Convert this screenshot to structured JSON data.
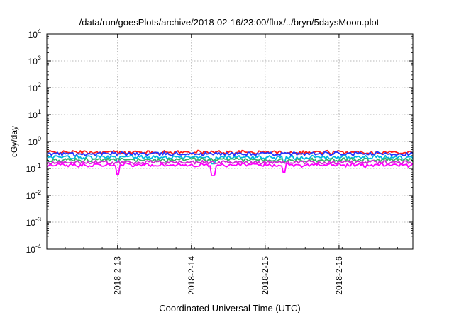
{
  "chart_data": {
    "type": "line",
    "title": "/data/run/goesPlots/archive/2018-02-16/23:00/flux/../bryn/5daysMoon.plot",
    "xlabel": "Coordinated Universal Time (UTC)",
    "ylabel": "cGy/day",
    "yscale": "log",
    "ylim": [
      0.0001,
      10000
    ],
    "yticks": [
      {
        "base": "10",
        "exp": "-4"
      },
      {
        "base": "10",
        "exp": "-3"
      },
      {
        "base": "10",
        "exp": "-2"
      },
      {
        "base": "10",
        "exp": "-1"
      },
      {
        "base": "10",
        "exp": "0"
      },
      {
        "base": "10",
        "exp": "1"
      },
      {
        "base": "10",
        "exp": "2"
      },
      {
        "base": "10",
        "exp": "3"
      },
      {
        "base": "10",
        "exp": "4"
      }
    ],
    "xlim": [
      "2018-02-12T01:00",
      "2018-02-17T00:00"
    ],
    "xticks": [
      "2018-2-13",
      "2018-2-14",
      "2018-2-15",
      "2018-2-16"
    ],
    "grid": true,
    "series": [
      {
        "color": "#ff1a1a",
        "base": 0.4,
        "dips": []
      },
      {
        "color": "#2233ff",
        "base": 0.35,
        "dips": []
      },
      {
        "color": "#00b8e0",
        "base": 0.26,
        "dips": [
          {
            "at": "2018-02-13T00:00",
            "value": 0.18
          },
          {
            "at": "2018-02-14T07:00",
            "value": 0.15
          },
          {
            "at": "2018-02-15T06:00",
            "value": 0.17
          }
        ]
      },
      {
        "color": "#3ab26a",
        "base": 0.21,
        "dips": []
      },
      {
        "color": "#d22ad2",
        "base": 0.17,
        "dips": []
      },
      {
        "color": "#ff00ff",
        "base": 0.135,
        "dips": [
          {
            "at": "2018-02-13T00:00",
            "value": 0.06
          },
          {
            "at": "2018-02-14T07:00",
            "value": 0.055
          },
          {
            "at": "2018-02-15T06:00",
            "value": 0.07
          }
        ]
      }
    ]
  }
}
